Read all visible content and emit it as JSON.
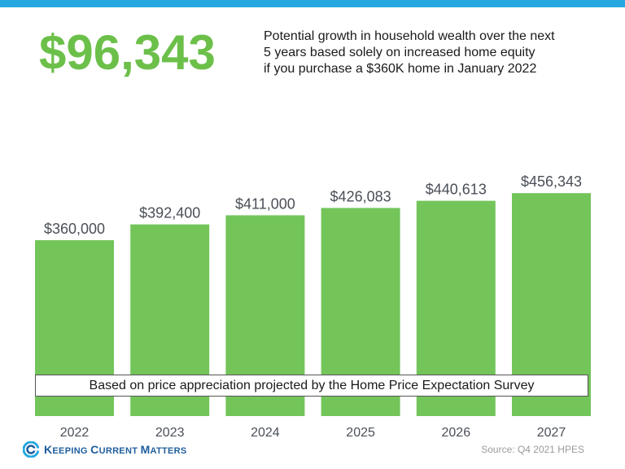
{
  "header": {
    "big_number": "$96,343",
    "headline_lines": [
      "Potential growth in household wealth over the next",
      "5 years based solely on increased home equity",
      "if you purchase a $360K home in January 2022"
    ]
  },
  "footnote": "Based on price appreciation projected by the Home Price Expectation Survey",
  "logo": {
    "text_1_cap": "K",
    "text_1_rest": "EEPING ",
    "text_2_cap": "C",
    "text_2_rest": "URRENT ",
    "text_3_cap": "M",
    "text_3_rest": "ATTERS"
  },
  "source": "Source: Q4 2021 HPES",
  "colors": {
    "accent_bar": "#25a9e0",
    "bar_fill": "#73c55a",
    "big_number": "#6cc04a",
    "data_label": "#4a4f57",
    "logo": "#1f5e9e"
  },
  "chart_data": {
    "type": "bar",
    "categories": [
      "2022",
      "2023",
      "2024",
      "2025",
      "2026",
      "2027"
    ],
    "values": [
      360000,
      392400,
      411000,
      426083,
      440613,
      456343
    ],
    "data_labels": [
      "$360,000",
      "$392,400",
      "$411,000",
      "$426,083",
      "$440,613",
      "$456,343"
    ],
    "title": "",
    "xlabel": "",
    "ylabel": "",
    "ylim": [
      0,
      500000
    ],
    "grid": false,
    "legend": "none"
  }
}
